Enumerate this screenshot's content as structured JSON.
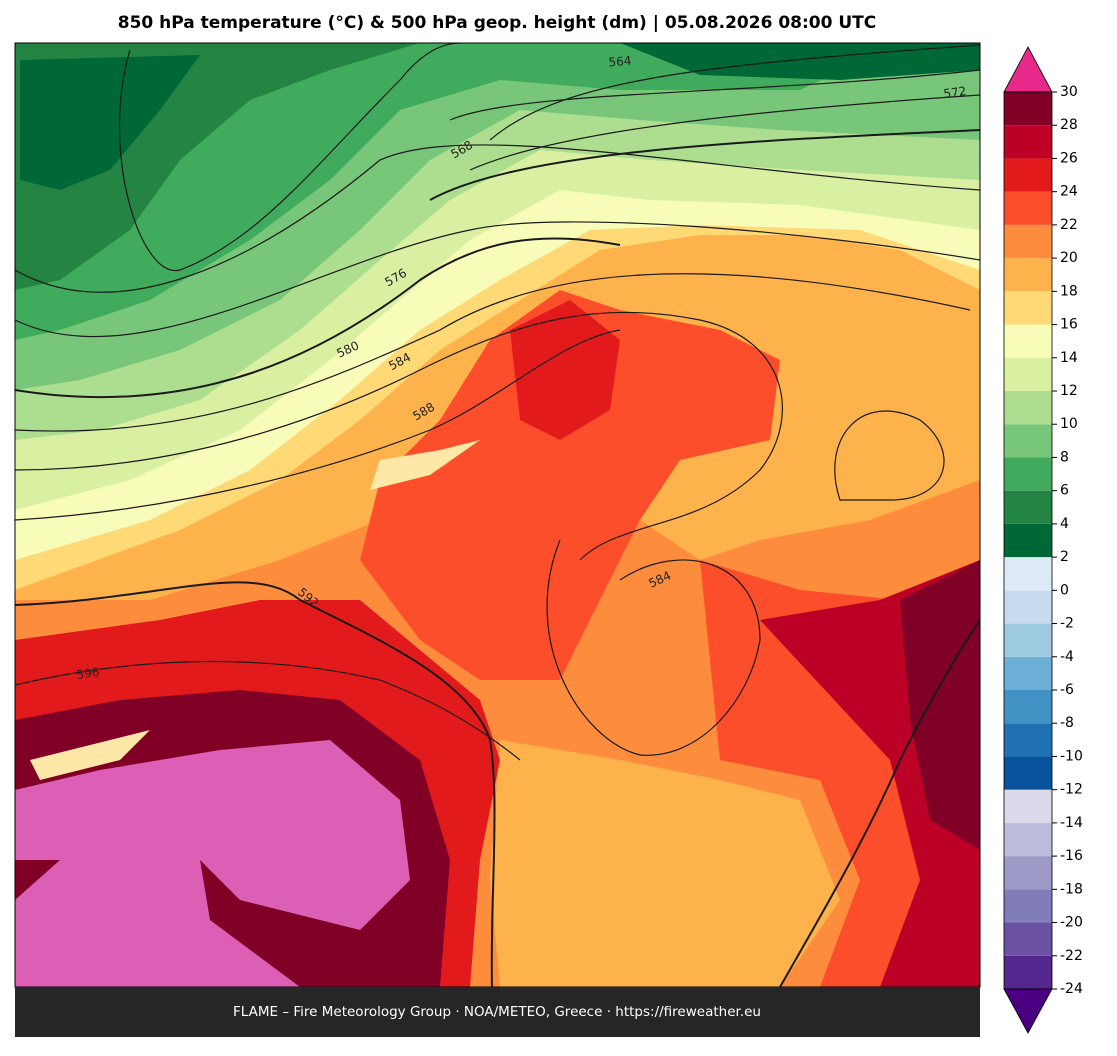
{
  "title": "850 hPa temperature (°C) & 500 hPa geop. height (dm)  |  05.08.2026 08:00 UTC",
  "footer": "FLAME – Fire Meteorology Group · NOA/METEO, Greece · https://fireweather.eu",
  "contour_labels": [
    564,
    572,
    568,
    576,
    580,
    584,
    588,
    592,
    596,
    584
  ],
  "colorbar": {
    "ticks": [
      -24,
      -22,
      -20,
      -18,
      -16,
      -14,
      -12,
      -10,
      -8,
      -6,
      -4,
      -2,
      0,
      2,
      4,
      6,
      8,
      10,
      12,
      14,
      16,
      18,
      20,
      22,
      24,
      26,
      28,
      30
    ],
    "colors": [
      "#54278f",
      "#6a51a3",
      "#807dba",
      "#9e9ac8",
      "#bcbddc",
      "#dadaeb",
      "#08519c",
      "#2171b5",
      "#4292c6",
      "#6baed6",
      "#9ecae1",
      "#c6dbef",
      "#deebf7",
      "#006837",
      "#238443",
      "#41ab5d",
      "#78c679",
      "#addd8e",
      "#d9f0a3",
      "#f7fcb9",
      "#fed976",
      "#feb24c",
      "#fd8d3c",
      "#fc4e2a",
      "#e31a1c",
      "#bd0026",
      "#800026",
      "#dd5fb5"
    ],
    "under_color": "#4b0082",
    "over_color": "#e7298a"
  }
}
